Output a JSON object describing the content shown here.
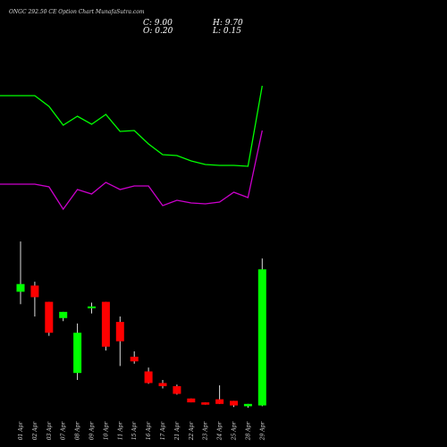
{
  "header": {
    "title": "ONGC 292.50  CE Option  Chart MunafaSutra.com",
    "close_label": "C: 9.00",
    "high_label": "H: 9.70",
    "open_label": "O: 0.20",
    "low_label": "L: 0.15"
  },
  "colors": {
    "background": "#000000",
    "up": "#00ff00",
    "down": "#ff0000",
    "line_upper": "#00ff00",
    "line_lower": "#cc00cc",
    "text": "#ffffff"
  },
  "chart_data": {
    "type": "candlestick",
    "categories": [
      "01 Apr",
      "02 Apr",
      "03 Apr",
      "07 Apr",
      "08 Apr",
      "09 Apr",
      "10 Apr",
      "11 Apr",
      "15 Apr",
      "16 Apr",
      "17 Apr",
      "21 Apr",
      "22 Apr",
      "23 Apr",
      "24 Apr",
      "25 Apr",
      "28 Apr",
      "29 Apr"
    ],
    "candles": [
      {
        "open": 7.55,
        "high": 10.8,
        "low": 6.75,
        "close": 8.05
      },
      {
        "open": 7.95,
        "high": 8.2,
        "low": 5.95,
        "close": 7.2
      },
      {
        "open": 6.9,
        "high": 6.9,
        "low": 4.7,
        "close": 4.9
      },
      {
        "open": 5.85,
        "high": 6.25,
        "low": 5.65,
        "close": 6.25
      },
      {
        "open": 2.3,
        "high": 5.5,
        "low": 1.85,
        "close": 4.9
      },
      {
        "open": 6.55,
        "high": 6.85,
        "low": 6.15,
        "close": 6.6
      },
      {
        "open": 6.9,
        "high": 6.9,
        "low": 3.75,
        "close": 4.0
      },
      {
        "open": 5.6,
        "high": 5.95,
        "low": 2.75,
        "close": 4.35
      },
      {
        "open": 3.35,
        "high": 3.7,
        "low": 2.9,
        "close": 3.05
      },
      {
        "open": 2.4,
        "high": 2.65,
        "low": 1.6,
        "close": 1.65
      },
      {
        "open": 1.65,
        "high": 1.85,
        "low": 1.3,
        "close": 1.45
      },
      {
        "open": 1.45,
        "high": 1.55,
        "low": 0.9,
        "close": 0.95
      },
      {
        "open": 0.65,
        "high": 0.65,
        "low": 0.4,
        "close": 0.4
      },
      {
        "open": 0.4,
        "high": 0.4,
        "low": 0.25,
        "close": 0.25
      },
      {
        "open": 0.6,
        "high": 1.5,
        "low": 0.3,
        "close": 0.3
      },
      {
        "open": 0.5,
        "high": 0.5,
        "low": 0.1,
        "close": 0.2
      },
      {
        "open": 0.15,
        "high": 0.3,
        "low": 0.05,
        "close": 0.3
      },
      {
        "open": 0.2,
        "high": 9.7,
        "low": 0.15,
        "close": 9.0
      }
    ],
    "ylim": [
      0,
      11.5
    ],
    "lines": [
      {
        "color": "#00ff00",
        "x_labels": [
          "01 Apr",
          "02 Apr",
          "03 Apr",
          "07 Apr",
          "08 Apr",
          "09 Apr",
          "10 Apr",
          "11 Apr",
          "15 Apr",
          "16 Apr",
          "17 Apr",
          "21 Apr",
          "22 Apr",
          "23 Apr",
          "24 Apr",
          "25 Apr",
          "28 Apr",
          "29 Apr"
        ],
        "values": [
          107,
          107,
          119,
          140,
          130,
          139,
          128,
          147,
          146,
          161,
          173,
          174,
          180,
          184,
          185,
          185,
          186,
          96
        ]
      },
      {
        "color": "#cc00cc",
        "x_labels": [
          "01 Apr",
          "02 Apr",
          "03 Apr",
          "07 Apr",
          "08 Apr",
          "09 Apr",
          "10 Apr",
          "11 Apr",
          "15 Apr",
          "16 Apr",
          "17 Apr",
          "21 Apr",
          "22 Apr",
          "23 Apr",
          "24 Apr",
          "25 Apr",
          "28 Apr",
          "29 Apr"
        ],
        "values": [
          206,
          206,
          209,
          234,
          212,
          217,
          204,
          212,
          208,
          208,
          230,
          224,
          227,
          228,
          226,
          215,
          221,
          146
        ]
      }
    ],
    "lines_note_units": "vertical position in line-panel scale (larger = lower)",
    "grid": false,
    "legend": "none"
  }
}
